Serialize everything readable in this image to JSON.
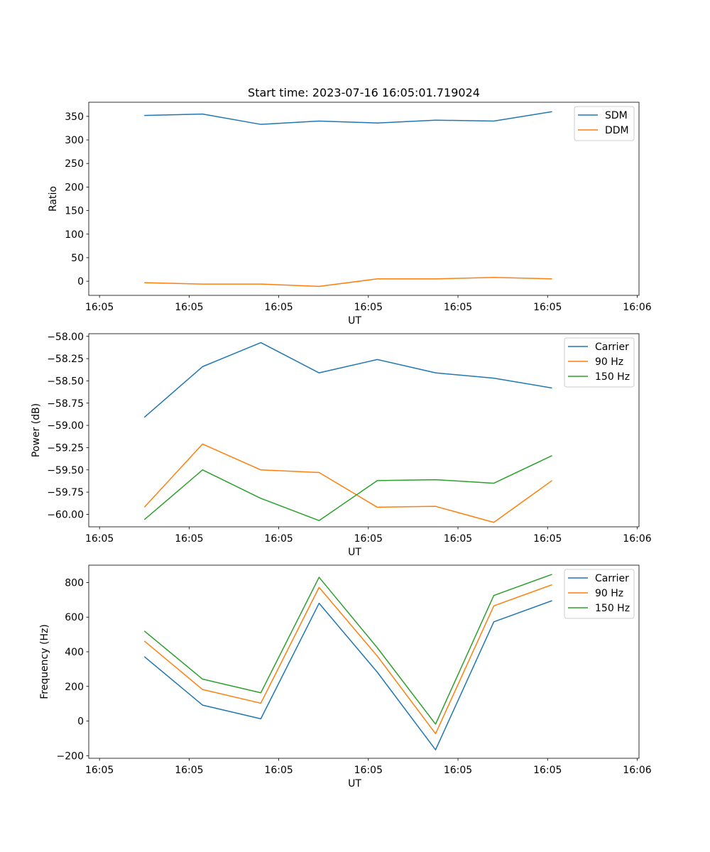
{
  "figure_title": "Start time: 2023-07-16 16:05:01.719024",
  "chart_data": [
    {
      "type": "line",
      "title": "Start time: 2023-07-16 16:05:01.719024",
      "xlabel": "UT",
      "ylabel": "Ratio",
      "x_tick_labels": [
        "16:05",
        "16:05",
        "16:05",
        "16:05",
        "16:05",
        "16:05",
        "16:06"
      ],
      "x_tick_positions": [
        0,
        1,
        2,
        3,
        4,
        5,
        6
      ],
      "x": [
        0.5,
        1.15,
        1.8,
        2.45,
        3.1,
        3.75,
        4.4,
        5.05
      ],
      "xlim": [
        -0.12,
        6.02
      ],
      "ylim": [
        -30,
        380
      ],
      "yticks": [
        0,
        50,
        100,
        150,
        200,
        250,
        300,
        350
      ],
      "legend_loc": "upper right",
      "series": [
        {
          "name": "SDM",
          "color": "#1f77b4",
          "values": [
            352,
            355,
            333,
            340,
            336,
            342,
            340,
            360
          ]
        },
        {
          "name": "DDM",
          "color": "#ff7f0e",
          "values": [
            -3,
            -6,
            -6,
            -11,
            5,
            5,
            8,
            5
          ]
        }
      ]
    },
    {
      "type": "line",
      "xlabel": "UT",
      "ylabel": "Power (dB)",
      "x_tick_labels": [
        "16:05",
        "16:05",
        "16:05",
        "16:05",
        "16:05",
        "16:05",
        "16:06"
      ],
      "x_tick_positions": [
        0,
        1,
        2,
        3,
        4,
        5,
        6
      ],
      "x": [
        0.5,
        1.15,
        1.8,
        2.45,
        3.1,
        3.75,
        4.4,
        5.05
      ],
      "xlim": [
        -0.12,
        6.02
      ],
      "ylim": [
        -60.14,
        -57.97
      ],
      "yticks": [
        -60.0,
        -59.75,
        -59.5,
        -59.25,
        -59.0,
        -58.75,
        -58.5,
        -58.25,
        -58.0
      ],
      "ytick_labels": [
        "−60.00",
        "−59.75",
        "−59.50",
        "−59.25",
        "−59.00",
        "−58.75",
        "−58.50",
        "−58.25",
        "−58.00"
      ],
      "legend_loc": "upper right",
      "series": [
        {
          "name": "Carrier",
          "color": "#1f77b4",
          "values": [
            -58.91,
            -58.34,
            -58.07,
            -58.41,
            -58.26,
            -58.41,
            -58.47,
            -58.58
          ]
        },
        {
          "name": "90 Hz",
          "color": "#ff7f0e",
          "values": [
            -59.92,
            -59.21,
            -59.5,
            -59.53,
            -59.92,
            -59.91,
            -60.09,
            -59.62
          ]
        },
        {
          "name": "150 Hz",
          "color": "#2ca02c",
          "values": [
            -60.06,
            -59.5,
            -59.82,
            -60.07,
            -59.62,
            -59.61,
            -59.65,
            -59.34
          ]
        }
      ]
    },
    {
      "type": "line",
      "xlabel": "UT",
      "ylabel": "Frequency (Hz)",
      "x_tick_labels": [
        "16:05",
        "16:05",
        "16:05",
        "16:05",
        "16:05",
        "16:05",
        "16:06"
      ],
      "x_tick_positions": [
        0,
        1,
        2,
        3,
        4,
        5,
        6
      ],
      "x": [
        0.5,
        1.15,
        1.8,
        2.45,
        3.1,
        3.75,
        4.4,
        5.05
      ],
      "xlim": [
        -0.12,
        6.02
      ],
      "ylim": [
        -215,
        900
      ],
      "yticks": [
        -200,
        0,
        200,
        400,
        600,
        800
      ],
      "ytick_labels": [
        "−200",
        "0",
        "200",
        "400",
        "600",
        "800"
      ],
      "legend_loc": "upper right",
      "series": [
        {
          "name": "Carrier",
          "color": "#1f77b4",
          "values": [
            372,
            92,
            13,
            680,
            282,
            -166,
            573,
            695
          ]
        },
        {
          "name": "90 Hz",
          "color": "#ff7f0e",
          "values": [
            462,
            182,
            103,
            772,
            375,
            -73,
            665,
            787
          ]
        },
        {
          "name": "150 Hz",
          "color": "#2ca02c",
          "values": [
            520,
            242,
            163,
            830,
            423,
            -18,
            725,
            847
          ]
        }
      ]
    }
  ]
}
